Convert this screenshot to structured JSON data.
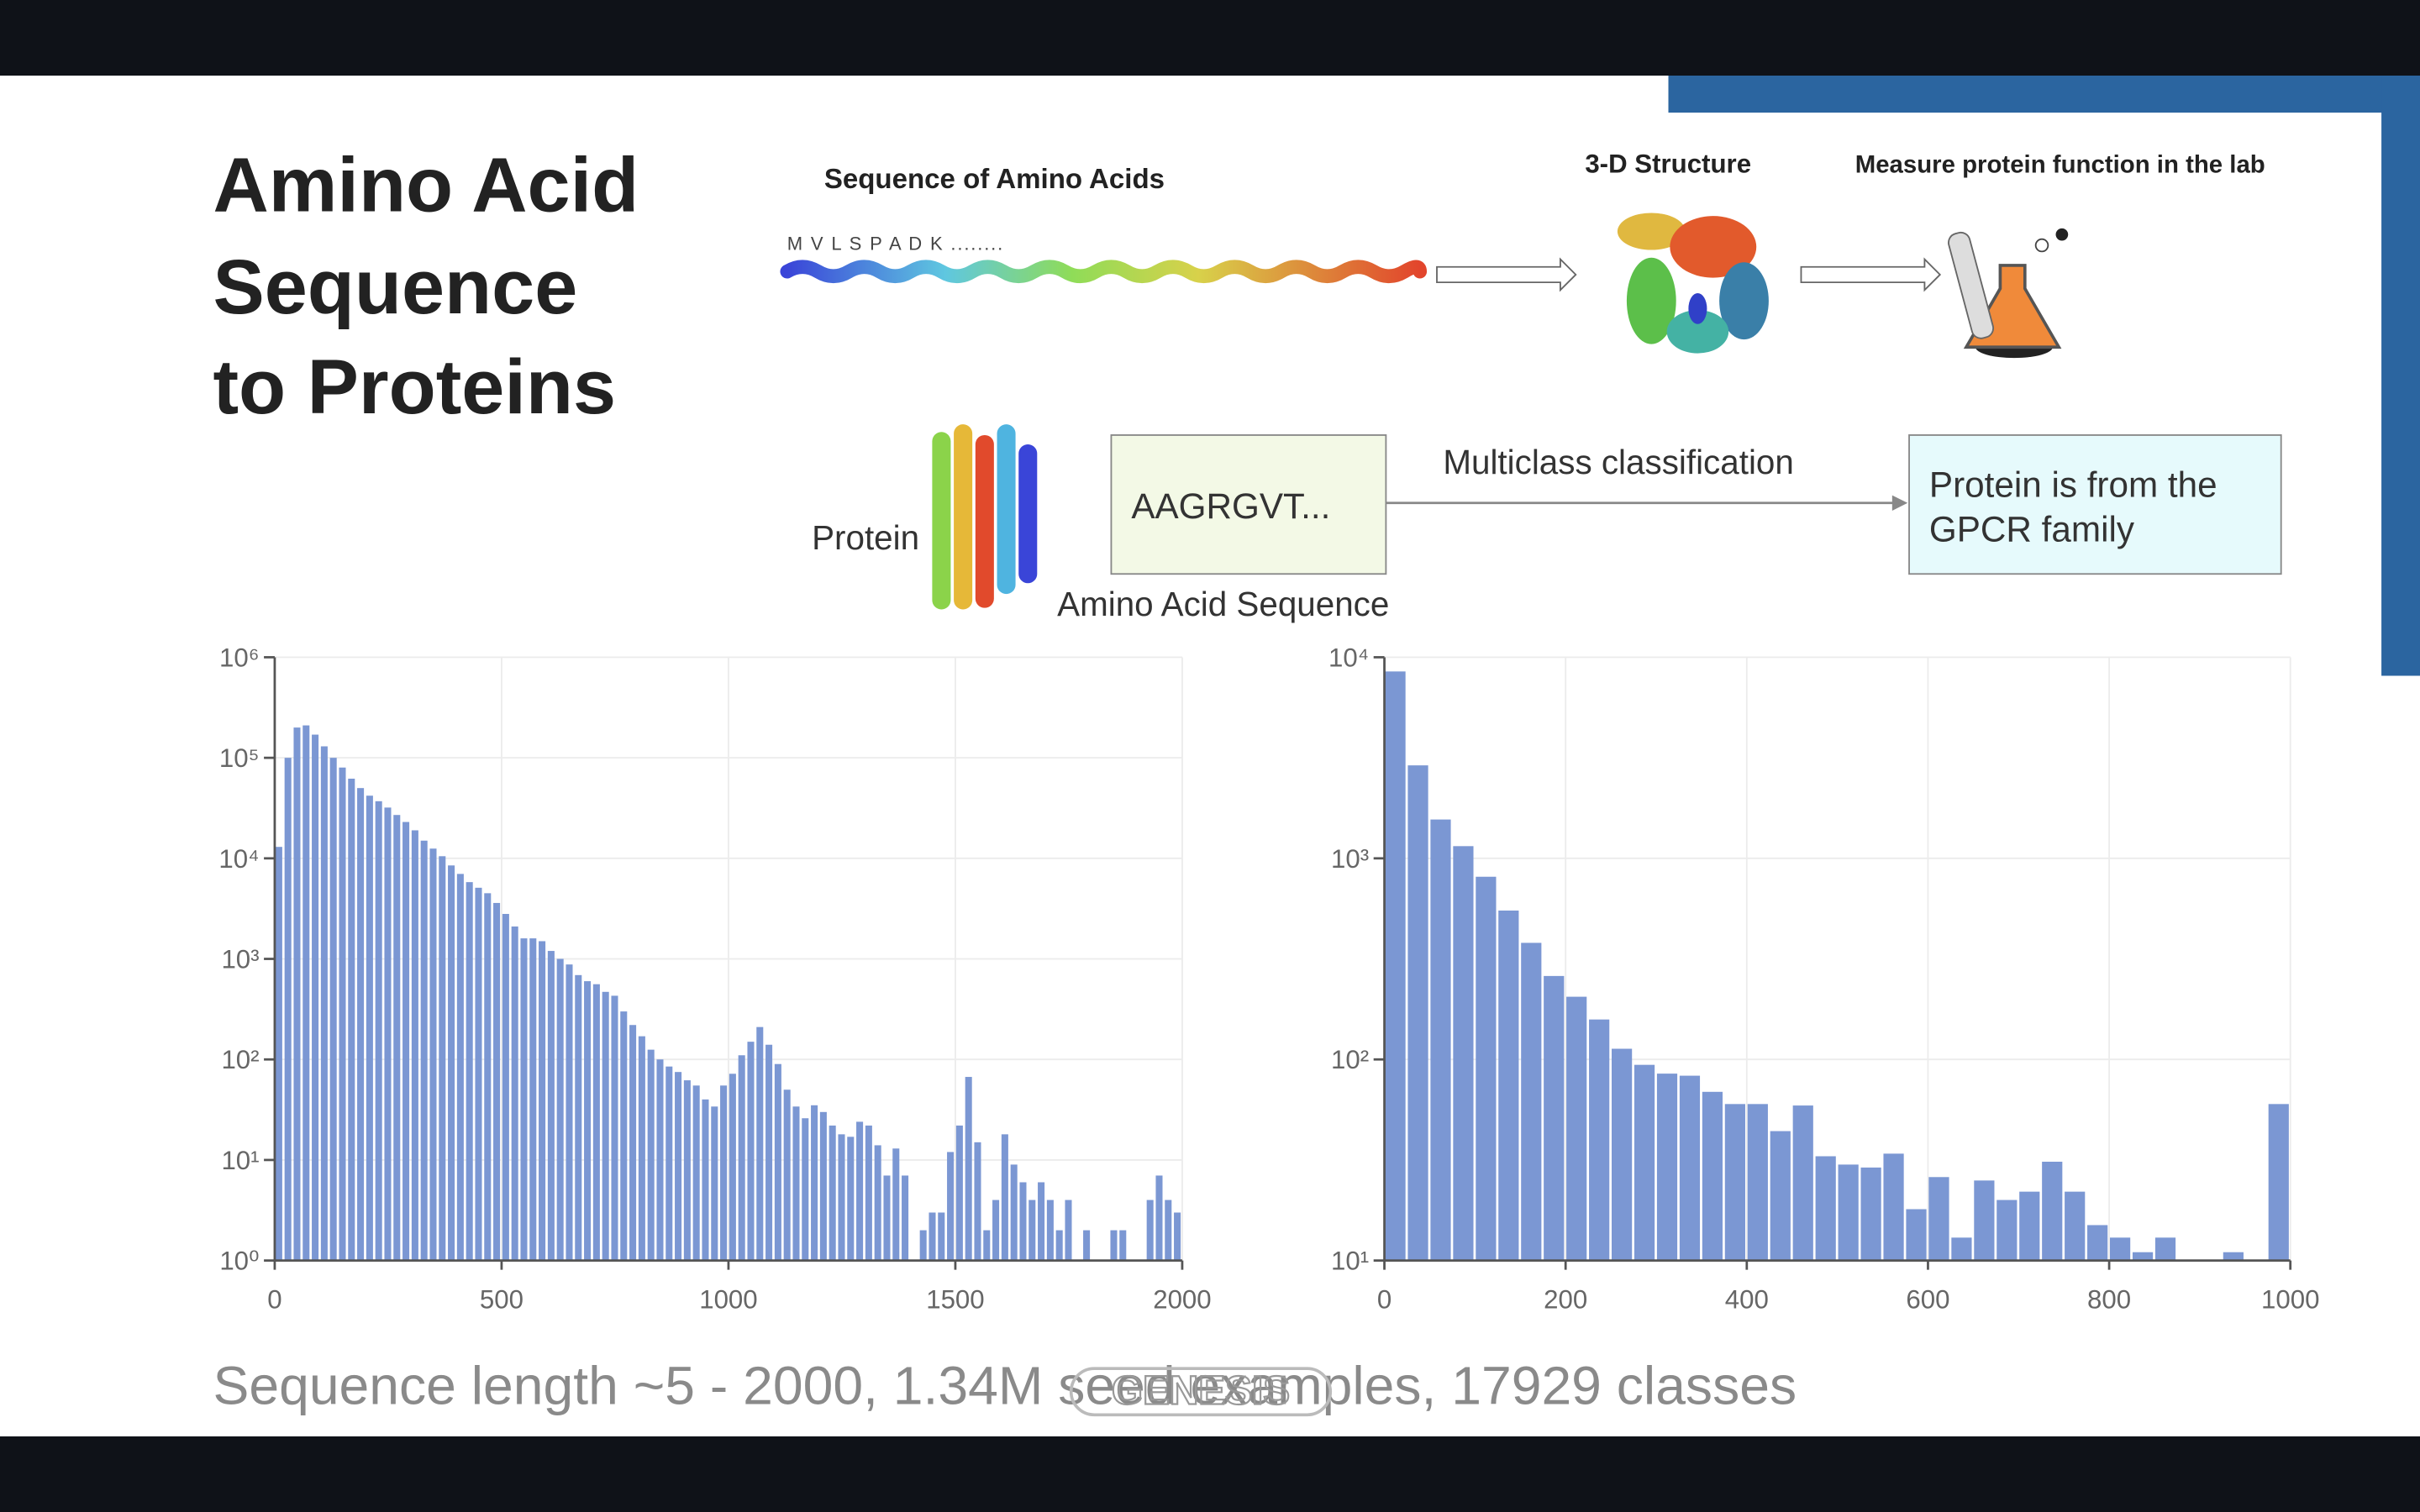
{
  "slide": {
    "title_lines": [
      "Amino Acid",
      "Sequence",
      "to Proteins"
    ],
    "caption": "Sequence length ~5 - 2000, 1.34M seed examples, 17929 classes",
    "watermark": "GENESIS"
  },
  "diagram": {
    "sequence_heading": "Sequence of Amino Acids",
    "sequence_text": "M V L S P A D K ........",
    "structure_heading": "3-D Structure",
    "function_heading": "Measure protein function in the lab",
    "protein_label": "Protein",
    "input_box": "AAGRGVT...",
    "task": "Multiclass classification",
    "output_box_lines": [
      "Protein is from the",
      "GPCR family"
    ],
    "input_label": "Amino Acid Sequence"
  },
  "chart_data": [
    {
      "type": "histogram",
      "color": "#7b97d3",
      "log_y": true,
      "grid": true,
      "bins": [
        0,
        20,
        40,
        60,
        80,
        100,
        120,
        140,
        160,
        180,
        200,
        220,
        240,
        260,
        280,
        300,
        320,
        340,
        360,
        380,
        400,
        420,
        440,
        460,
        480,
        500,
        520,
        540,
        560,
        580,
        600,
        620,
        640,
        660,
        680,
        700,
        720,
        740,
        760,
        780,
        800,
        820,
        840,
        860,
        880,
        900,
        920,
        940,
        960,
        980,
        1000,
        1020,
        1040,
        1060,
        1080,
        1100,
        1120,
        1140,
        1160,
        1180,
        1200,
        1220,
        1240,
        1260,
        1280,
        1300,
        1320,
        1340,
        1360,
        1380,
        1400,
        1420,
        1440,
        1460,
        1480,
        1500,
        1520,
        1540,
        1560,
        1580,
        1600,
        1620,
        1640,
        1660,
        1680,
        1700,
        1720,
        1740,
        1760,
        1780,
        1800,
        1820,
        1840,
        1860,
        1880,
        1900,
        1920,
        1940,
        1960,
        1980,
        2000
      ],
      "values": [
        13000,
        100000,
        200000,
        210000,
        170000,
        130000,
        100000,
        80000,
        62000,
        50000,
        42000,
        37000,
        32000,
        27000,
        23000,
        19000,
        15000,
        12500,
        10500,
        8500,
        7000,
        5800,
        5100,
        4500,
        3600,
        2800,
        2100,
        1600,
        1600,
        1500,
        1200,
        1000,
        880,
        690,
        600,
        560,
        470,
        430,
        300,
        220,
        170,
        125,
        100,
        85,
        75,
        62,
        55,
        40,
        34,
        55,
        72,
        110,
        150,
        210,
        140,
        90,
        50,
        34,
        26,
        35,
        30,
        22,
        18,
        17,
        24,
        22,
        14,
        7,
        13,
        7,
        null,
        2,
        3,
        3,
        12,
        22,
        67,
        15,
        2,
        4,
        18,
        9,
        6,
        4,
        6,
        4,
        2,
        4,
        null,
        2,
        null,
        null,
        2,
        2,
        null,
        null,
        4,
        7,
        4,
        3
      ],
      "xlim": [
        0,
        2000
      ],
      "xticks": [
        0,
        500,
        1000,
        1500,
        2000
      ],
      "ylim": [
        1,
        1000000
      ],
      "yticks": [
        {
          "value": 1,
          "label": "10⁰"
        },
        {
          "value": 10,
          "label": "10¹"
        },
        {
          "value": 100,
          "label": "10²"
        },
        {
          "value": 1000,
          "label": "10³"
        },
        {
          "value": 10000,
          "label": "10⁴"
        },
        {
          "value": 100000,
          "label": "10⁵"
        },
        {
          "value": 1000000,
          "label": "10⁶"
        }
      ]
    },
    {
      "type": "histogram",
      "color": "#7b97d3",
      "log_y": true,
      "grid": true,
      "bins": [
        0,
        25,
        50,
        75,
        100,
        125,
        150,
        175,
        200,
        225,
        250,
        275,
        300,
        325,
        350,
        375,
        400,
        425,
        450,
        475,
        500,
        525,
        550,
        575,
        600,
        625,
        650,
        675,
        700,
        725,
        750,
        775,
        800,
        825,
        850,
        875,
        900,
        925,
        950,
        975,
        1000
      ],
      "values": [
        8500,
        2900,
        1560,
        1150,
        810,
        550,
        380,
        260,
        205,
        158,
        113,
        94,
        85,
        83,
        69,
        60,
        60,
        44,
        59,
        33,
        30,
        29,
        34,
        18,
        26,
        13,
        25,
        20,
        22,
        31,
        22,
        15,
        13,
        11,
        13,
        null,
        null,
        11,
        null,
        60
      ],
      "xlim": [
        0,
        1000
      ],
      "xticks": [
        0,
        200,
        400,
        600,
        800,
        1000
      ],
      "ylim": [
        10,
        10000
      ],
      "yticks": [
        {
          "value": 10,
          "label": "10¹"
        },
        {
          "value": 100,
          "label": "10²"
        },
        {
          "value": 1000,
          "label": "10³"
        },
        {
          "value": 10000,
          "label": "10⁴"
        }
      ]
    }
  ]
}
